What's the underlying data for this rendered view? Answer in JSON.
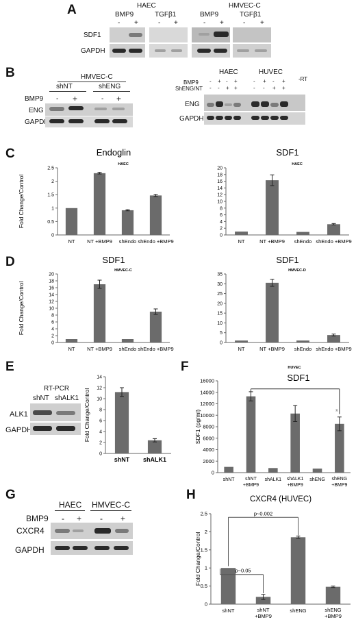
{
  "panel_labels": {
    "A": "A",
    "B": "B",
    "C": "C",
    "D": "D",
    "E": "E",
    "F": "F",
    "G": "G",
    "H": "H"
  },
  "panelA": {
    "cell_lines": [
      "HAEC",
      "HMVEC-C"
    ],
    "treatments": [
      "BMP9",
      "TGFβ1",
      "BMP9",
      "TGFβ1"
    ],
    "signs": [
      "-",
      "+",
      "-",
      "+",
      "-",
      "+",
      "-",
      "+"
    ],
    "rows": [
      "SDF1",
      "GAPDH"
    ]
  },
  "panelB_left": {
    "cell_line": "HMVEC-C",
    "groups": [
      "shNT",
      "shENG"
    ],
    "treatment_label": "BMP9",
    "signs": [
      "-",
      "+",
      "-",
      "+"
    ],
    "rows": [
      "ENG",
      "GAPDH"
    ]
  },
  "panelB_right": {
    "cell_lines": [
      "HAEC",
      "HUVEC"
    ],
    "row_labels": [
      "BMP9",
      "ShENG/NT"
    ],
    "bmp9_signs": [
      "-",
      "+",
      "-",
      "+",
      "-",
      "+",
      "-",
      "+"
    ],
    "sh_signs": [
      "-",
      "-",
      "+",
      "+",
      "-",
      "-",
      "+",
      "+"
    ],
    "neg_rt": "-RT",
    "rows": [
      "ENG",
      "GAPDH"
    ]
  },
  "panelE_gel": {
    "title": "RT-PCR",
    "lanes": [
      "shNT",
      "shALK1"
    ],
    "rows": [
      "ALK1",
      "GAPDH"
    ]
  },
  "panelG": {
    "cell_lines": [
      "HAEC",
      "HMVEC-C"
    ],
    "treatment_label": "BMP9",
    "signs": [
      "-",
      "+",
      "-",
      "+"
    ],
    "rows": [
      "CXCR4",
      "GAPDH"
    ]
  },
  "chart_data": [
    {
      "id": "C-left",
      "type": "bar",
      "title": "Endoglin",
      "subtitle": "HAEC",
      "ylabel": "Fold Change/Control",
      "categories": [
        "NT",
        "NT +BMP9",
        "shEndo",
        "shEndo +BMP9"
      ],
      "values": [
        1.0,
        2.3,
        0.92,
        1.47
      ],
      "errors": [
        0,
        0.03,
        0.02,
        0.04
      ],
      "ylim": [
        0,
        2.5
      ],
      "yticks": [
        "0",
        "0.5",
        "1",
        "1.5",
        "2",
        "2.5"
      ],
      "tickvals": [
        0,
        0.5,
        1,
        1.5,
        2,
        2.5
      ]
    },
    {
      "id": "C-right",
      "type": "bar",
      "title": "SDF1",
      "subtitle": "HAEC",
      "ylabel": "",
      "categories": [
        "NT",
        "NT +BMP9",
        "shEndo",
        "shEndo +BMP9"
      ],
      "values": [
        1.0,
        16.3,
        0.9,
        3.2
      ],
      "errors": [
        0,
        1.6,
        0,
        0.2
      ],
      "ylim": [
        0,
        20
      ],
      "yticks": [
        "0",
        "2",
        "4",
        "6",
        "8",
        "10",
        "12",
        "14",
        "16",
        "18",
        "20"
      ],
      "tickvals": [
        0,
        2,
        4,
        6,
        8,
        10,
        12,
        14,
        16,
        18,
        20
      ]
    },
    {
      "id": "D-left",
      "type": "bar",
      "title": "SDF1",
      "subtitle": "HMVEC-C",
      "ylabel": "Fold Change/Control",
      "categories": [
        "NT",
        "NT +BMP9",
        "shEndo",
        "shEndo +BMP9"
      ],
      "values": [
        1.0,
        17.0,
        1.0,
        9.0
      ],
      "errors": [
        0,
        1.2,
        0,
        0.8
      ],
      "ylim": [
        0,
        20
      ],
      "yticks": [
        "0",
        "2",
        "4",
        "6",
        "8",
        "10",
        "12",
        "14",
        "16",
        "18",
        "20"
      ],
      "tickvals": [
        0,
        2,
        4,
        6,
        8,
        10,
        12,
        14,
        16,
        18,
        20
      ]
    },
    {
      "id": "D-right",
      "type": "bar",
      "title": "SDF1",
      "subtitle": "HMVEC-D",
      "ylabel": "",
      "categories": [
        "NT",
        "NT +BMP9",
        "shEndo",
        "shEndo +BMP9"
      ],
      "values": [
        1.0,
        30.5,
        1.0,
        3.8
      ],
      "errors": [
        0,
        1.8,
        0,
        0.5
      ],
      "ylim": [
        0,
        35
      ],
      "yticks": [
        "0",
        "5",
        "10",
        "15",
        "20",
        "25",
        "30",
        "35"
      ],
      "tickvals": [
        0,
        5,
        10,
        15,
        20,
        25,
        30,
        35
      ]
    },
    {
      "id": "E",
      "type": "bar",
      "title": "",
      "subtitle": "",
      "ylabel": "Fold Change/Control",
      "categories": [
        "shNT",
        "shALK1"
      ],
      "values": [
        11.2,
        2.4
      ],
      "errors": [
        0.8,
        0.3
      ],
      "ylim": [
        0,
        14
      ],
      "yticks": [
        "0",
        "2",
        "4",
        "6",
        "8",
        "10",
        "12",
        "14"
      ],
      "tickvals": [
        0,
        2,
        4,
        6,
        8,
        10,
        12,
        14
      ]
    },
    {
      "id": "F",
      "type": "bar",
      "title": "SDF1",
      "subtitle": "HUVEC",
      "ylabel": "SDF1 (pg/ml)",
      "categories": [
        "shNT",
        "shNT +BMP9",
        "shALK1",
        "shALK1 +BMP9",
        "shENG",
        "shENG +BMP9"
      ],
      "values": [
        1000,
        13300,
        800,
        10300,
        700,
        8500
      ],
      "errors": [
        0,
        800,
        0,
        1400,
        0,
        1200
      ],
      "ylim": [
        0,
        16000
      ],
      "yticks": [
        "0",
        "2000",
        "4000",
        "6000",
        "8000",
        "10000",
        "12000",
        "14000",
        "16000"
      ],
      "tickvals": [
        0,
        2000,
        4000,
        6000,
        8000,
        10000,
        12000,
        14000,
        16000
      ],
      "annotations": [
        "*"
      ]
    },
    {
      "id": "H",
      "type": "bar",
      "title": "CXCR4 (HUVEC)",
      "subtitle": "",
      "ylabel": "Fold Change/Control",
      "categories": [
        "shNT",
        "shNT +BMP9",
        "shENG",
        "shENG +BMP9"
      ],
      "values": [
        1.0,
        0.2,
        1.85,
        0.48
      ],
      "errors": [
        0,
        0.07,
        0.03,
        0.02
      ],
      "ylim": [
        0,
        2.5
      ],
      "yticks": [
        "0",
        "0.5",
        "1",
        "1.5",
        "2",
        "2.5"
      ],
      "tickvals": [
        0,
        0.5,
        1,
        1.5,
        2,
        2.5
      ],
      "annotations": [
        "p~0.002",
        "p~0.05"
      ]
    }
  ]
}
